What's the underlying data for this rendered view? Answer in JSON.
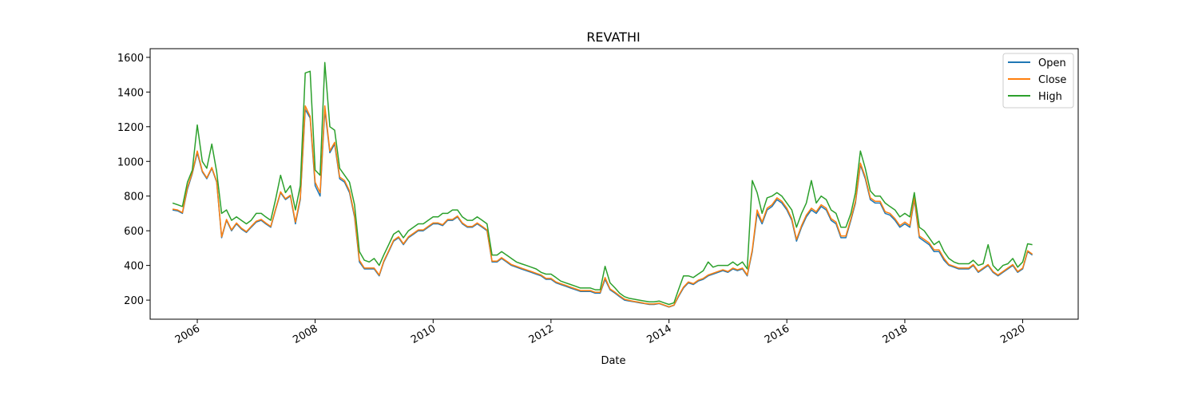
{
  "chart_data": {
    "type": "line",
    "title": "REVATHI",
    "xlabel": "Date",
    "ylabel": "",
    "xlim": [
      "2005-03-15",
      "2020-12-10"
    ],
    "ylim": [
      90,
      1650
    ],
    "x_ticks": [
      "2006",
      "2008",
      "2010",
      "2012",
      "2014",
      "2016",
      "2018",
      "2020"
    ],
    "y_ticks": [
      200,
      400,
      600,
      800,
      1000,
      1200,
      1400,
      1600
    ],
    "legend_position": "top-right",
    "grid": false,
    "dates": [
      "2005-08-01",
      "2005-09-01",
      "2005-10-01",
      "2005-11-01",
      "2005-12-01",
      "2006-01-01",
      "2006-02-01",
      "2006-03-01",
      "2006-04-01",
      "2006-05-01",
      "2006-06-01",
      "2006-07-01",
      "2006-08-01",
      "2006-09-01",
      "2006-10-01",
      "2006-11-01",
      "2006-12-01",
      "2007-01-01",
      "2007-02-01",
      "2007-03-01",
      "2007-04-01",
      "2007-05-01",
      "2007-06-01",
      "2007-07-01",
      "2007-08-01",
      "2007-09-01",
      "2007-10-01",
      "2007-11-01",
      "2007-12-01",
      "2008-01-01",
      "2008-02-01",
      "2008-03-01",
      "2008-04-01",
      "2008-05-01",
      "2008-06-01",
      "2008-07-01",
      "2008-08-01",
      "2008-09-01",
      "2008-10-01",
      "2008-11-01",
      "2008-12-01",
      "2009-01-01",
      "2009-02-01",
      "2009-03-01",
      "2009-04-01",
      "2009-05-01",
      "2009-06-01",
      "2009-07-01",
      "2009-08-01",
      "2009-09-01",
      "2009-10-01",
      "2009-11-01",
      "2009-12-01",
      "2010-01-01",
      "2010-02-01",
      "2010-03-01",
      "2010-04-01",
      "2010-05-01",
      "2010-06-01",
      "2010-07-01",
      "2010-08-01",
      "2010-09-01",
      "2010-10-01",
      "2010-11-01",
      "2010-12-01",
      "2011-01-01",
      "2011-02-01",
      "2011-03-01",
      "2011-04-01",
      "2011-05-01",
      "2011-06-01",
      "2011-07-01",
      "2011-08-01",
      "2011-09-01",
      "2011-10-01",
      "2011-11-01",
      "2011-12-01",
      "2012-01-01",
      "2012-02-01",
      "2012-03-01",
      "2012-04-01",
      "2012-05-01",
      "2012-06-01",
      "2012-07-01",
      "2012-08-01",
      "2012-09-01",
      "2012-10-01",
      "2012-11-01",
      "2012-12-01",
      "2013-01-01",
      "2013-02-01",
      "2013-03-01",
      "2013-04-01",
      "2013-05-01",
      "2013-06-01",
      "2013-07-01",
      "2013-08-01",
      "2013-09-01",
      "2013-10-01",
      "2013-11-01",
      "2013-12-01",
      "2014-01-01",
      "2014-02-01",
      "2014-03-01",
      "2014-04-01",
      "2014-05-01",
      "2014-06-01",
      "2014-07-01",
      "2014-08-01",
      "2014-09-01",
      "2014-10-01",
      "2014-11-01",
      "2014-12-01",
      "2015-01-01",
      "2015-02-01",
      "2015-03-01",
      "2015-04-01",
      "2015-05-01",
      "2015-06-01",
      "2015-07-01",
      "2015-08-01",
      "2015-09-01",
      "2015-10-01",
      "2015-11-01",
      "2015-12-01",
      "2016-01-01",
      "2016-02-01",
      "2016-03-01",
      "2016-04-01",
      "2016-05-01",
      "2016-06-01",
      "2016-07-01",
      "2016-08-01",
      "2016-09-01",
      "2016-10-01",
      "2016-11-01",
      "2016-12-01",
      "2017-01-01",
      "2017-02-01",
      "2017-03-01",
      "2017-04-01",
      "2017-05-01",
      "2017-06-01",
      "2017-07-01",
      "2017-08-01",
      "2017-09-01",
      "2017-10-01",
      "2017-11-01",
      "2017-12-01",
      "2018-01-01",
      "2018-02-01",
      "2018-03-01",
      "2018-04-01",
      "2018-05-01",
      "2018-06-01",
      "2018-07-01",
      "2018-08-01",
      "2018-09-01",
      "2018-10-01",
      "2018-11-01",
      "2018-12-01",
      "2019-01-01",
      "2019-02-01",
      "2019-03-01",
      "2019-04-01",
      "2019-05-01",
      "2019-06-01",
      "2019-07-01",
      "2019-08-01",
      "2019-09-01",
      "2019-10-01",
      "2019-11-01",
      "2019-12-01",
      "2020-01-01",
      "2020-02-01",
      "2020-03-01"
    ],
    "series": [
      {
        "name": "Open",
        "color": "#1f77b4",
        "values": [
          720,
          715,
          700,
          840,
          930,
          1050,
          940,
          900,
          960,
          880,
          560,
          660,
          600,
          640,
          610,
          590,
          620,
          650,
          660,
          640,
          620,
          720,
          820,
          780,
          800,
          640,
          780,
          1300,
          1250,
          860,
          800,
          1300,
          1050,
          1100,
          900,
          880,
          820,
          680,
          420,
          380,
          380,
          380,
          340,
          420,
          480,
          540,
          560,
          520,
          560,
          580,
          600,
          600,
          620,
          640,
          640,
          630,
          660,
          660,
          680,
          640,
          620,
          620,
          640,
          620,
          600,
          420,
          420,
          440,
          420,
          400,
          390,
          380,
          370,
          360,
          350,
          340,
          320,
          320,
          300,
          290,
          280,
          270,
          260,
          250,
          250,
          250,
          240,
          240,
          320,
          260,
          240,
          220,
          200,
          195,
          190,
          185,
          180,
          175,
          175,
          180,
          170,
          160,
          170,
          220,
          270,
          300,
          290,
          310,
          320,
          340,
          350,
          360,
          370,
          360,
          380,
          370,
          380,
          340,
          480,
          700,
          640,
          720,
          740,
          780,
          760,
          720,
          660,
          540,
          620,
          680,
          720,
          700,
          740,
          720,
          660,
          640,
          560,
          560,
          660,
          760,
          980,
          900,
          780,
          760,
          760,
          700,
          690,
          660,
          620,
          640,
          620,
          780,
          560,
          540,
          520,
          480,
          480,
          430,
          400,
          390,
          380,
          380,
          380,
          400,
          360,
          380,
          400,
          360,
          340,
          360,
          380,
          400,
          360,
          380,
          480,
          460
        ]
      },
      {
        "name": "Close",
        "color": "#ff7f0e",
        "values": [
          725,
          720,
          705,
          850,
          935,
          1060,
          945,
          905,
          965,
          885,
          565,
          665,
          605,
          645,
          615,
          595,
          625,
          655,
          665,
          645,
          625,
          725,
          825,
          785,
          805,
          650,
          790,
          1320,
          1260,
          880,
          820,
          1320,
          1060,
          1110,
          910,
          890,
          830,
          690,
          430,
          385,
          385,
          385,
          345,
          425,
          485,
          545,
          565,
          525,
          565,
          585,
          605,
          605,
          625,
          645,
          645,
          635,
          665,
          665,
          685,
          645,
          625,
          625,
          645,
          625,
          605,
          425,
          425,
          445,
          425,
          405,
          395,
          385,
          375,
          365,
          355,
          345,
          325,
          325,
          305,
          295,
          285,
          275,
          265,
          255,
          255,
          255,
          245,
          245,
          330,
          265,
          245,
          225,
          205,
          198,
          192,
          188,
          182,
          178,
          178,
          182,
          172,
          162,
          172,
          225,
          275,
          305,
          295,
          315,
          325,
          345,
          355,
          365,
          375,
          365,
          385,
          375,
          385,
          345,
          490,
          720,
          650,
          730,
          750,
          790,
          770,
          730,
          670,
          550,
          630,
          690,
          730,
          710,
          750,
          730,
          670,
          650,
          570,
          570,
          670,
          770,
          990,
          910,
          790,
          770,
          770,
          710,
          700,
          670,
          630,
          650,
          630,
          790,
          570,
          550,
          530,
          490,
          490,
          440,
          405,
          395,
          385,
          385,
          385,
          405,
          365,
          385,
          405,
          365,
          345,
          365,
          385,
          405,
          365,
          385,
          485,
          465
        ]
      },
      {
        "name": "High",
        "color": "#2ca02c",
        "values": [
          760,
          750,
          740,
          880,
          950,
          1210,
          1000,
          960,
          1100,
          940,
          700,
          720,
          660,
          680,
          660,
          640,
          660,
          700,
          700,
          680,
          660,
          780,
          920,
          820,
          860,
          720,
          860,
          1510,
          1520,
          950,
          920,
          1570,
          1200,
          1180,
          960,
          920,
          880,
          750,
          480,
          430,
          420,
          440,
          400,
          460,
          520,
          580,
          600,
          560,
          600,
          620,
          640,
          640,
          660,
          680,
          680,
          700,
          700,
          720,
          720,
          680,
          660,
          660,
          680,
          660,
          640,
          460,
          460,
          480,
          460,
          440,
          420,
          410,
          400,
          390,
          380,
          360,
          350,
          350,
          330,
          310,
          300,
          290,
          280,
          270,
          270,
          270,
          260,
          260,
          395,
          300,
          270,
          240,
          220,
          210,
          205,
          200,
          195,
          190,
          190,
          195,
          185,
          175,
          185,
          260,
          340,
          340,
          330,
          350,
          370,
          420,
          390,
          400,
          400,
          400,
          420,
          400,
          420,
          380,
          890,
          820,
          700,
          790,
          800,
          820,
          800,
          760,
          720,
          620,
          700,
          760,
          890,
          760,
          800,
          780,
          720,
          700,
          620,
          620,
          700,
          820,
          1060,
          960,
          830,
          800,
          800,
          760,
          740,
          720,
          680,
          700,
          680,
          820,
          620,
          600,
          560,
          520,
          540,
          480,
          440,
          420,
          410,
          410,
          410,
          430,
          400,
          410,
          520,
          400,
          370,
          400,
          410,
          440,
          390,
          420,
          525,
          520
        ]
      }
    ]
  }
}
